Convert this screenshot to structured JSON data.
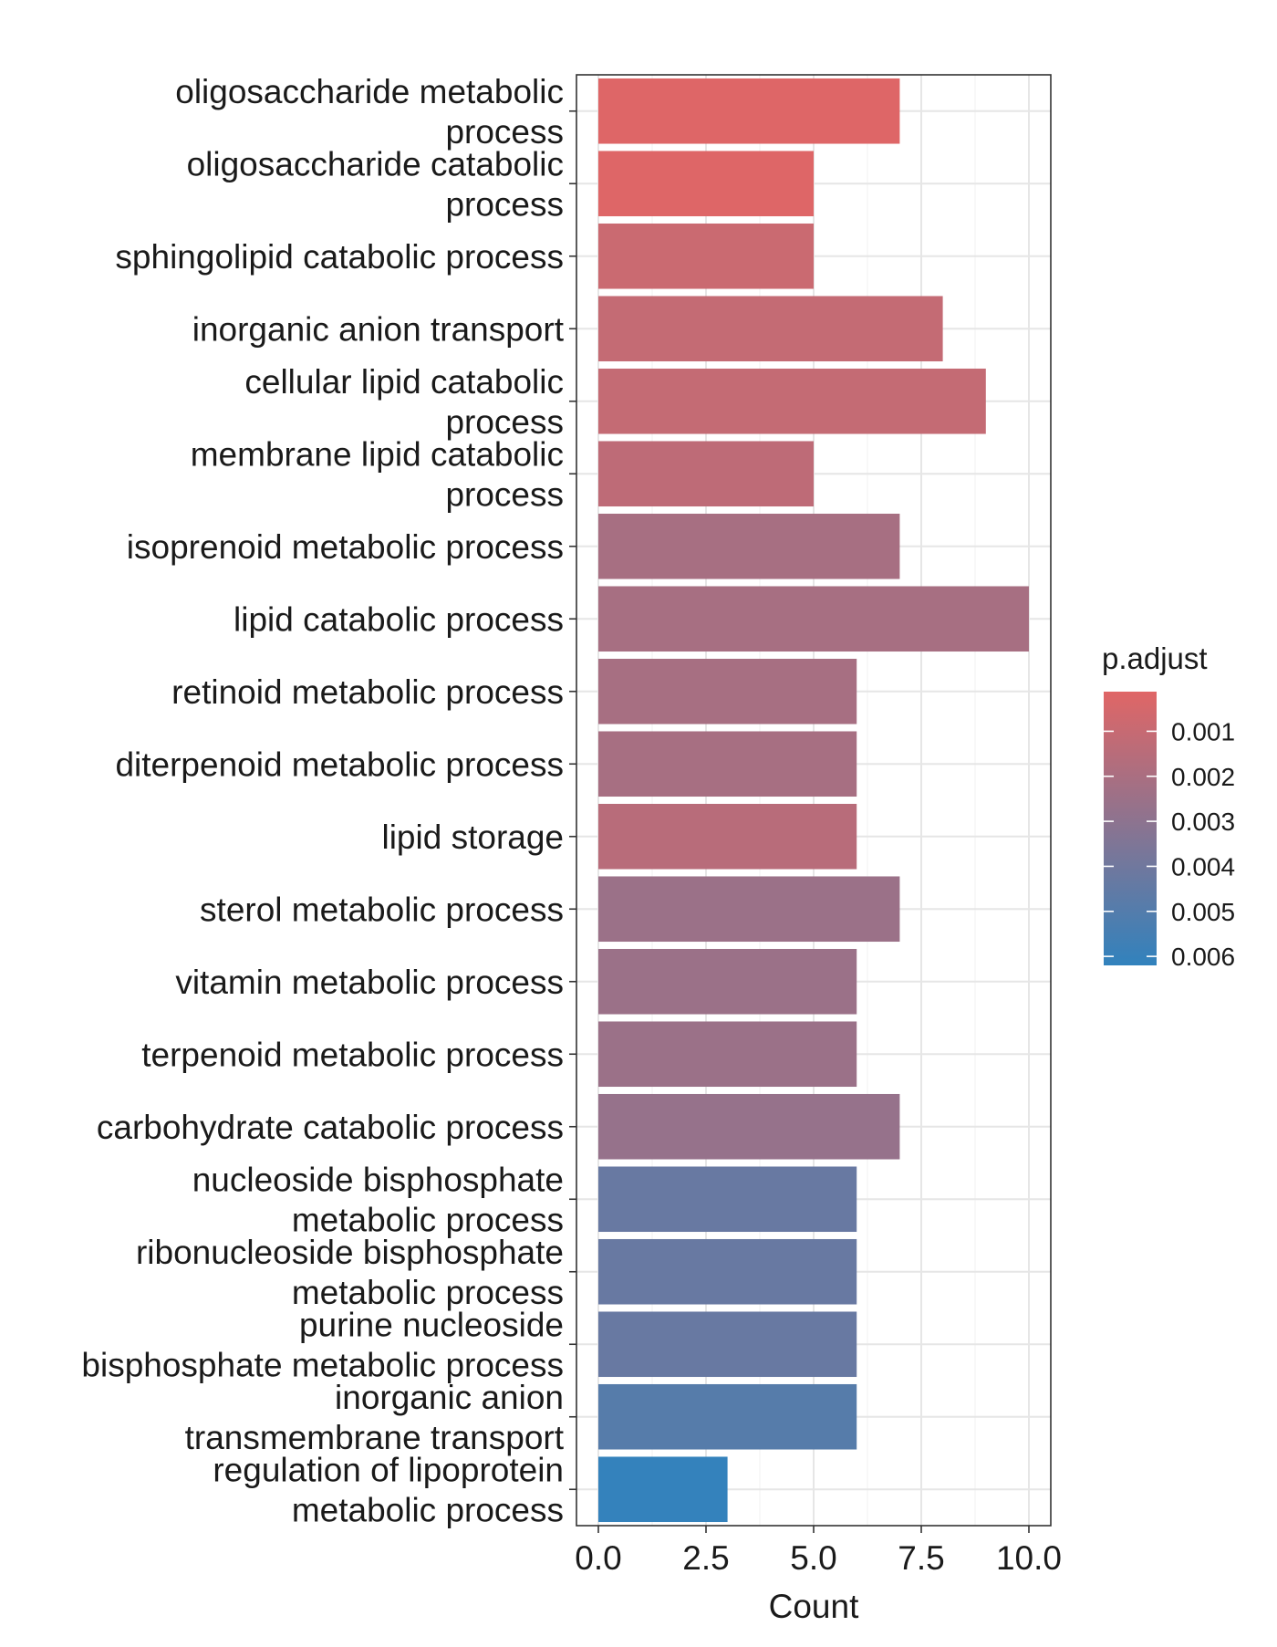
{
  "chart_data": {
    "type": "bar",
    "orientation": "horizontal",
    "xlabel": "Count",
    "ylabel": "",
    "xlim": [
      0,
      10.5
    ],
    "x_ticks": [
      0,
      2.5,
      5,
      7.5,
      10
    ],
    "x_tick_labels": [
      "0.0",
      "2.5",
      "5.0",
      "7.5",
      "10.0"
    ],
    "grid": true,
    "legend": {
      "title": "p.adjust",
      "placement": "right",
      "scale": "continuous",
      "range": [
        0.00012,
        0.0062
      ],
      "ticks": [
        0.001,
        0.002,
        0.003,
        0.004,
        0.005,
        0.006
      ],
      "tick_labels": [
        "0.001",
        "0.002",
        "0.003",
        "0.004",
        "0.005",
        "0.006"
      ],
      "color_low": "#E06666",
      "color_high": "#3182BD"
    },
    "categories": [
      [
        "oligosaccharide metabolic",
        "process"
      ],
      [
        "oligosaccharide catabolic",
        "process"
      ],
      [
        "sphingolipid catabolic process"
      ],
      [
        "inorganic anion transport"
      ],
      [
        "cellular lipid catabolic",
        "process"
      ],
      [
        "membrane lipid catabolic",
        "process"
      ],
      [
        "isoprenoid metabolic process"
      ],
      [
        "lipid catabolic process"
      ],
      [
        "retinoid metabolic process"
      ],
      [
        "diterpenoid metabolic process"
      ],
      [
        "lipid storage"
      ],
      [
        "sterol metabolic process"
      ],
      [
        "vitamin metabolic process"
      ],
      [
        "terpenoid metabolic process"
      ],
      [
        "carbohydrate catabolic process"
      ],
      [
        "nucleoside bisphosphate",
        "metabolic process"
      ],
      [
        "ribonucleoside bisphosphate",
        "metabolic process"
      ],
      [
        "purine nucleoside",
        "bisphosphate metabolic process"
      ],
      [
        "inorganic anion",
        "transmembrane transport"
      ],
      [
        "regulation of lipoprotein",
        "metabolic process"
      ]
    ],
    "values": [
      7,
      5,
      5,
      8,
      9,
      5,
      7,
      10,
      6,
      6,
      6,
      7,
      6,
      6,
      7,
      6,
      6,
      6,
      6,
      3
    ],
    "p_adjust": [
      0.0002,
      0.0002,
      0.0009,
      0.0011,
      0.0011,
      0.0013,
      0.0021,
      0.0021,
      0.0021,
      0.0021,
      0.0015,
      0.0025,
      0.0025,
      0.0025,
      0.0027,
      0.0043,
      0.0043,
      0.0043,
      0.0049,
      0.0061
    ]
  }
}
